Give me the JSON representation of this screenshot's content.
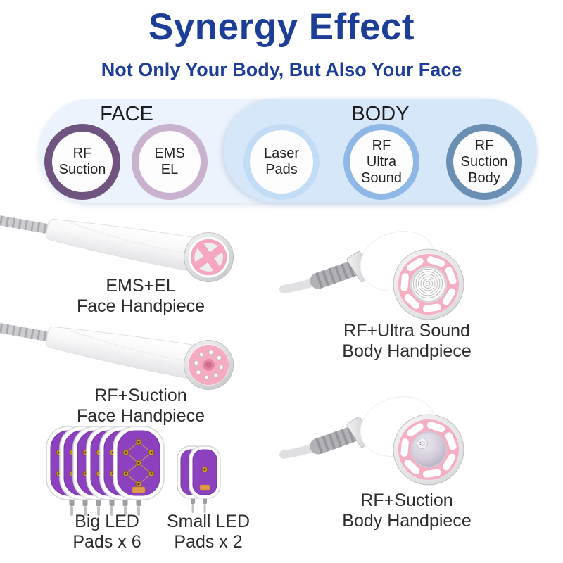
{
  "title": "Synergy Effect",
  "subtitle": "Not Only Your Body, But Also Your Face",
  "colors": {
    "title_blue": "#1d3e96",
    "text_dark": "#2c2c2c",
    "face_pill_bg": "#ecf3fc",
    "body_pill_bg": "#d6e7f9",
    "handpiece_pink": "#f5aec2",
    "led_pad_purple": "#8c42be",
    "ring_rf_suction": "#6f5480",
    "ring_ems_el": "#c9b2ce",
    "ring_laser_pads": "#c3dcf6",
    "ring_rf_ultra_sound": "#90b8e6",
    "ring_rf_suction_body": "#6b8fb3"
  },
  "sections": {
    "face": {
      "label": "FACE",
      "features": [
        {
          "label": "RF\nSuction",
          "ring_color": "#6f5480"
        },
        {
          "label": "EMS\nEL",
          "ring_color": "#c9b2ce"
        }
      ]
    },
    "body": {
      "label": "BODY",
      "features": [
        {
          "label": "Laser\nPads",
          "ring_color": "#c3dcf6"
        },
        {
          "label": "RF\nUltra\nSound",
          "ring_color": "#90b8e6"
        },
        {
          "label": "RF\nSuction\nBody",
          "ring_color": "#6b8fb3"
        }
      ]
    }
  },
  "products": [
    {
      "caption": "EMS+EL\nFace Handpiece"
    },
    {
      "caption": "RF+Suction\nFace Handpiece"
    },
    {
      "caption": "RF+Ultra Sound\nBody Handpiece"
    },
    {
      "caption": "RF+Suction\nBody Handpiece"
    },
    {
      "caption": "Big LED\nPads x 6"
    },
    {
      "caption": "Small LED\nPads x 2"
    }
  ]
}
